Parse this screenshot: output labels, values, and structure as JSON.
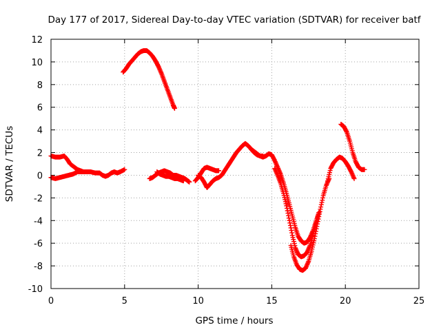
{
  "chart_data": {
    "type": "scatter",
    "title": "Day 177 of 2017, Sidereal Day-to-day VTEC variation (SDTVAR) for receiver batf",
    "xlabel": "GPS time / hours",
    "ylabel": "SDTVAR / TECUs",
    "xlim": [
      0,
      25
    ],
    "ylim": [
      -10,
      12
    ],
    "x_ticks": [
      "0",
      "5",
      "10",
      "15",
      "20",
      "25"
    ],
    "y_ticks": [
      "12",
      "10",
      "8",
      "6",
      "4",
      "2",
      "0",
      "-2",
      "-4",
      "-6",
      "-8",
      "-10"
    ],
    "grid": "dotted",
    "marker": "plus",
    "color": "#ff0000",
    "series": [
      {
        "points": [
          [
            0.0,
            1.7
          ],
          [
            0.3,
            1.6
          ],
          [
            0.6,
            1.6
          ],
          [
            0.9,
            1.7
          ],
          [
            1.1,
            1.4
          ],
          [
            1.3,
            1.0
          ],
          [
            1.6,
            0.7
          ],
          [
            1.8,
            0.5
          ],
          [
            2.0,
            0.4
          ],
          [
            2.2,
            0.3
          ],
          [
            2.5,
            0.3
          ]
        ]
      },
      {
        "points": [
          [
            0.0,
            -0.2
          ],
          [
            0.3,
            -0.3
          ],
          [
            0.6,
            -0.2
          ],
          [
            0.9,
            -0.1
          ],
          [
            1.2,
            0.0
          ],
          [
            1.5,
            0.1
          ],
          [
            1.8,
            0.3
          ],
          [
            2.1,
            0.3
          ],
          [
            2.4,
            0.3
          ],
          [
            2.7,
            0.3
          ],
          [
            3.0,
            0.2
          ],
          [
            3.3,
            0.2
          ],
          [
            3.5,
            0.0
          ],
          [
            3.7,
            -0.1
          ],
          [
            3.9,
            0.0
          ],
          [
            4.1,
            0.2
          ],
          [
            4.3,
            0.3
          ],
          [
            4.5,
            0.2
          ],
          [
            4.7,
            0.3
          ],
          [
            5.0,
            0.5
          ]
        ]
      },
      {
        "points": [
          [
            4.9,
            9.1
          ],
          [
            5.1,
            9.4
          ],
          [
            5.3,
            9.8
          ],
          [
            5.5,
            10.1
          ],
          [
            5.7,
            10.4
          ],
          [
            5.9,
            10.7
          ],
          [
            6.1,
            10.9
          ],
          [
            6.3,
            11.0
          ],
          [
            6.5,
            11.0
          ],
          [
            6.7,
            10.8
          ],
          [
            6.9,
            10.5
          ],
          [
            7.1,
            10.1
          ],
          [
            7.3,
            9.6
          ],
          [
            7.5,
            9.0
          ],
          [
            7.7,
            8.3
          ],
          [
            7.9,
            7.6
          ],
          [
            8.1,
            6.9
          ],
          [
            8.3,
            6.2
          ],
          [
            8.4,
            5.9
          ]
        ]
      },
      {
        "points": [
          [
            6.7,
            -0.3
          ],
          [
            6.9,
            -0.2
          ],
          [
            7.1,
            0.0
          ],
          [
            7.3,
            0.2
          ],
          [
            7.5,
            0.3
          ],
          [
            7.7,
            0.4
          ],
          [
            7.9,
            0.3
          ],
          [
            8.1,
            0.2
          ],
          [
            8.3,
            0.0
          ],
          [
            8.5,
            0.0
          ],
          [
            8.7,
            -0.1
          ],
          [
            8.9,
            -0.2
          ],
          [
            9.1,
            -0.3
          ],
          [
            9.3,
            -0.5
          ],
          [
            9.4,
            -0.6
          ]
        ]
      },
      {
        "points": [
          [
            7.2,
            0.3
          ],
          [
            7.4,
            0.1
          ],
          [
            7.6,
            0.0
          ],
          [
            7.8,
            -0.1
          ],
          [
            8.0,
            -0.1
          ],
          [
            8.2,
            -0.2
          ],
          [
            8.4,
            -0.3
          ],
          [
            8.6,
            -0.3
          ],
          [
            8.8,
            -0.4
          ],
          [
            9.0,
            -0.5
          ]
        ]
      },
      {
        "points": [
          [
            9.8,
            -0.5
          ],
          [
            10.0,
            -0.2
          ],
          [
            10.2,
            0.2
          ],
          [
            10.4,
            0.6
          ],
          [
            10.6,
            0.7
          ],
          [
            10.8,
            0.6
          ],
          [
            11.0,
            0.5
          ],
          [
            11.2,
            0.4
          ],
          [
            11.4,
            0.4
          ]
        ]
      },
      {
        "points": [
          [
            10.0,
            0.0
          ],
          [
            10.2,
            -0.2
          ],
          [
            10.4,
            -0.6
          ],
          [
            10.6,
            -1.1
          ],
          [
            10.8,
            -0.8
          ],
          [
            11.0,
            -0.5
          ],
          [
            11.2,
            -0.3
          ],
          [
            11.4,
            -0.2
          ],
          [
            11.6,
            0.0
          ],
          [
            11.8,
            0.4
          ],
          [
            12.0,
            0.8
          ],
          [
            12.2,
            1.2
          ],
          [
            12.4,
            1.6
          ],
          [
            12.6,
            2.0
          ],
          [
            12.8,
            2.3
          ],
          [
            13.0,
            2.6
          ],
          [
            13.2,
            2.8
          ],
          [
            13.4,
            2.6
          ],
          [
            13.6,
            2.3
          ],
          [
            13.8,
            2.0
          ],
          [
            14.0,
            1.8
          ],
          [
            14.2,
            1.7
          ],
          [
            14.4,
            1.7
          ]
        ]
      },
      {
        "points": [
          [
            13.6,
            2.3
          ],
          [
            13.8,
            2.1
          ],
          [
            14.0,
            1.9
          ],
          [
            14.2,
            1.7
          ],
          [
            14.4,
            1.6
          ],
          [
            14.6,
            1.7
          ],
          [
            14.8,
            1.9
          ],
          [
            15.0,
            1.8
          ],
          [
            15.2,
            1.3
          ],
          [
            15.4,
            0.7
          ],
          [
            15.6,
            0.1
          ],
          [
            15.8,
            -0.7
          ],
          [
            16.0,
            -1.6
          ],
          [
            16.2,
            -2.6
          ],
          [
            16.4,
            -3.6
          ],
          [
            16.6,
            -4.6
          ],
          [
            16.8,
            -5.4
          ],
          [
            17.0,
            -5.8
          ],
          [
            17.2,
            -6.0
          ],
          [
            17.4,
            -5.9
          ],
          [
            17.6,
            -5.5
          ],
          [
            17.8,
            -4.9
          ],
          [
            18.0,
            -4.1
          ],
          [
            18.2,
            -3.3
          ]
        ]
      },
      {
        "points": [
          [
            15.2,
            0.6
          ],
          [
            15.4,
            0.0
          ],
          [
            15.6,
            -0.7
          ],
          [
            15.8,
            -1.6
          ],
          [
            16.0,
            -2.7
          ],
          [
            16.2,
            -4.0
          ],
          [
            16.4,
            -5.3
          ],
          [
            16.6,
            -6.4
          ],
          [
            16.8,
            -7.0
          ],
          [
            17.0,
            -7.2
          ],
          [
            17.2,
            -7.1
          ],
          [
            17.4,
            -6.8
          ],
          [
            17.6,
            -6.2
          ],
          [
            17.8,
            -5.3
          ],
          [
            18.0,
            -4.3
          ],
          [
            18.2,
            -3.3
          ]
        ]
      },
      {
        "points": [
          [
            16.3,
            -6.2
          ],
          [
            16.5,
            -7.2
          ],
          [
            16.7,
            -7.9
          ],
          [
            16.9,
            -8.3
          ],
          [
            17.1,
            -8.4
          ],
          [
            17.3,
            -8.2
          ],
          [
            17.5,
            -7.6
          ],
          [
            17.7,
            -6.7
          ],
          [
            17.9,
            -5.6
          ],
          [
            18.1,
            -4.3
          ],
          [
            18.3,
            -3.0
          ],
          [
            18.5,
            -1.8
          ],
          [
            18.7,
            -0.9
          ],
          [
            18.9,
            -0.3
          ]
        ]
      },
      {
        "points": [
          [
            18.8,
            -0.5
          ],
          [
            19.0,
            0.6
          ],
          [
            19.2,
            1.1
          ],
          [
            19.4,
            1.4
          ],
          [
            19.6,
            1.6
          ],
          [
            19.8,
            1.5
          ],
          [
            20.0,
            1.2
          ],
          [
            20.2,
            0.8
          ],
          [
            20.4,
            0.3
          ],
          [
            20.6,
            -0.3
          ]
        ]
      },
      {
        "points": [
          [
            19.7,
            4.5
          ],
          [
            19.9,
            4.3
          ],
          [
            20.1,
            3.8
          ],
          [
            20.3,
            3.0
          ],
          [
            20.5,
            2.0
          ],
          [
            20.7,
            1.2
          ],
          [
            20.9,
            0.7
          ],
          [
            21.1,
            0.5
          ],
          [
            21.3,
            0.5
          ]
        ]
      }
    ]
  }
}
